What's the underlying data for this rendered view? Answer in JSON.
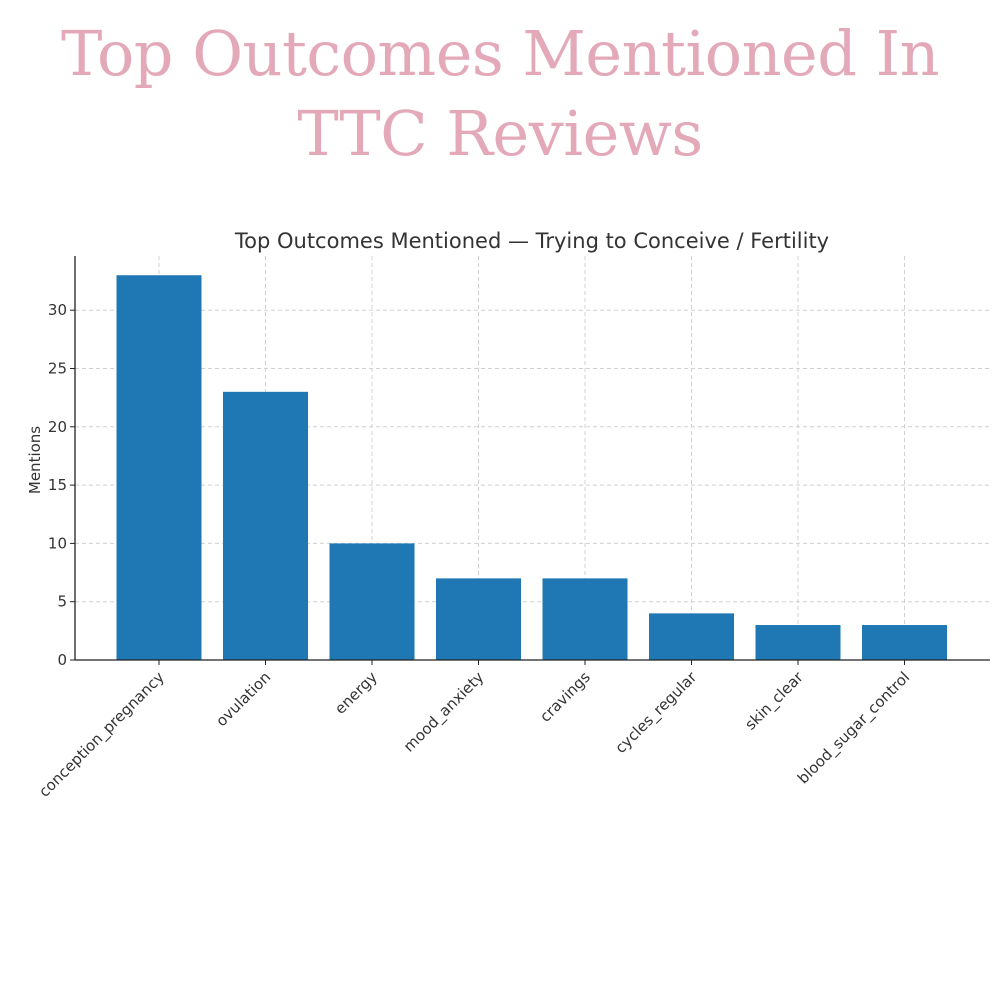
{
  "header": {
    "line1": "Top Outcomes Mentioned In",
    "line2": "TTC Reviews"
  },
  "colors": {
    "headline": "#e3a9b9",
    "bar": "#1f77b4"
  },
  "chart_data": {
    "type": "bar",
    "title": "Top Outcomes Mentioned — Trying to Conceive / Fertility",
    "xlabel": "",
    "ylabel": "Mentions",
    "categories": [
      "conception_pregnancy",
      "ovulation",
      "energy",
      "mood_anxiety",
      "cravings",
      "cycles_regular",
      "skin_clear",
      "blood_sugar_control"
    ],
    "values": [
      33,
      23,
      10,
      7,
      7,
      4,
      3,
      3
    ],
    "ylim": [
      0,
      34.65
    ],
    "yticks": [
      0,
      5,
      10,
      15,
      20,
      25,
      30
    ],
    "grid": true,
    "legend": "none"
  }
}
